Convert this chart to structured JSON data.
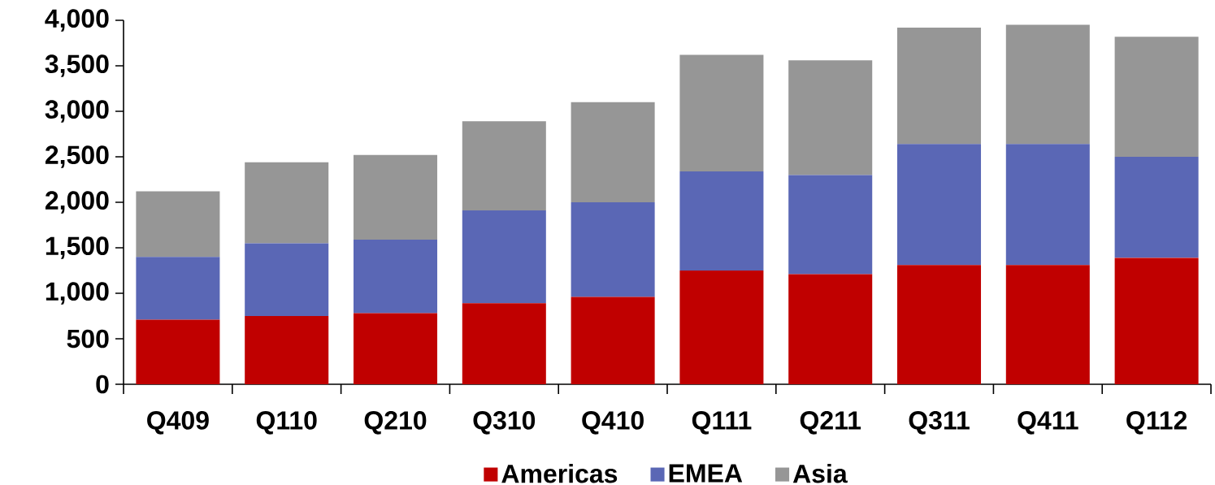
{
  "chart_data": {
    "type": "bar",
    "stacked": true,
    "legend": "bottom",
    "categories": [
      "Q409",
      "Q110",
      "Q210",
      "Q310",
      "Q410",
      "Q111",
      "Q211",
      "Q311",
      "Q411",
      "Q112"
    ],
    "series": [
      {
        "name": "Americas",
        "color": "#c00000",
        "values": [
          710,
          750,
          780,
          890,
          960,
          1250,
          1210,
          1310,
          1310,
          1390
        ]
      },
      {
        "name": "EMEA",
        "color": "#5a67b5",
        "values": [
          690,
          800,
          810,
          1020,
          1040,
          1090,
          1090,
          1330,
          1330,
          1110
        ]
      },
      {
        "name": "Asia",
        "color": "#969696",
        "values": [
          720,
          890,
          930,
          980,
          1100,
          1280,
          1260,
          1280,
          1310,
          1320
        ]
      }
    ],
    "ylim": [
      0,
      4000
    ],
    "yticks": [
      0,
      500,
      {
        "value": 1000,
        "label": "1,000"
      },
      {
        "value": 1500,
        "label": "1,500"
      },
      {
        "value": 2000,
        "label": "2,000"
      },
      {
        "value": 2500,
        "label": "2,500"
      },
      {
        "value": 3000,
        "label": "3,000"
      },
      {
        "value": 3500,
        "label": "3,500"
      },
      {
        "value": 4000,
        "label": "4,000"
      }
    ]
  }
}
